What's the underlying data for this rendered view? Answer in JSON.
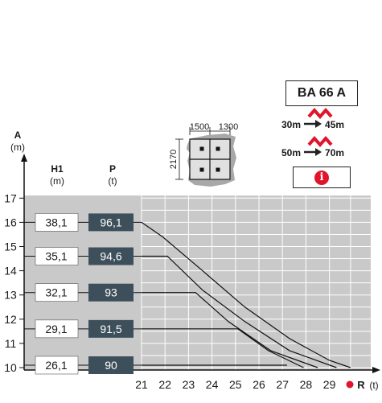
{
  "model": "BA 66 A",
  "speed_rows": [
    {
      "from": "30m",
      "to": "45m"
    },
    {
      "from": "50m",
      "to": "70m"
    }
  ],
  "colors": {
    "plot_bg": "#c9c9c9",
    "grid": "#ffffff",
    "curve": "#111111",
    "dark_box": "#3d4f5a",
    "accent_red": "#e0152b"
  },
  "icons": {
    "wind": "wind-warning-icon",
    "info": "info-icon",
    "arrow": "arrow-right-icon",
    "dot": "red-dot-icon"
  },
  "base": {
    "width": "1500",
    "width2": "1300",
    "height": "2170"
  },
  "chart_data": {
    "type": "line",
    "y_axis": {
      "label": "A",
      "unit": "(m)",
      "ticks": [
        17,
        16,
        15,
        14,
        13,
        12,
        11,
        10
      ],
      "range": [
        9.6,
        17
      ]
    },
    "x_axis": {
      "label": "R",
      "unit": "(t)",
      "ticks": [
        21,
        22,
        23,
        24,
        25,
        26,
        27,
        28,
        29
      ],
      "range": [
        20.8,
        30.4
      ]
    },
    "h1_header": {
      "label": "H1",
      "unit": "(m)"
    },
    "p_header": {
      "label": "P",
      "unit": "(t)"
    },
    "grid": true,
    "series": [
      {
        "y_level": 16,
        "h1": "38,1",
        "p": "96,1",
        "points": [
          [
            21,
            16
          ],
          [
            21.9,
            15.4
          ],
          [
            23.6,
            14.0
          ],
          [
            25.4,
            12.5
          ],
          [
            27.3,
            11.2
          ],
          [
            29.0,
            10.3
          ],
          [
            29.9,
            10.0
          ]
        ]
      },
      {
        "y_level": 14.6,
        "h1": "35,1",
        "p": "94,6",
        "points": [
          [
            21,
            14.6
          ],
          [
            22.1,
            14.6
          ],
          [
            23.6,
            13.2
          ],
          [
            25.4,
            11.9
          ],
          [
            27.3,
            10.7
          ],
          [
            29.3,
            10.0
          ]
        ]
      },
      {
        "y_level": 13.1,
        "h1": "32,1",
        "p": "93",
        "points": [
          [
            21,
            13.1
          ],
          [
            23.3,
            13.1
          ],
          [
            24.7,
            11.9
          ],
          [
            26.5,
            10.7
          ],
          [
            28.5,
            10.0
          ]
        ]
      },
      {
        "y_level": 11.6,
        "h1": "29,1",
        "p": "91,5",
        "points": [
          [
            21,
            11.6
          ],
          [
            25.1,
            11.6
          ],
          [
            26.4,
            10.7
          ],
          [
            27.9,
            10.0
          ]
        ]
      },
      {
        "y_level": 10.1,
        "h1": "26,1",
        "p": "90",
        "points": [
          [
            21,
            10.1
          ],
          [
            27.2,
            10.1
          ]
        ]
      }
    ]
  }
}
